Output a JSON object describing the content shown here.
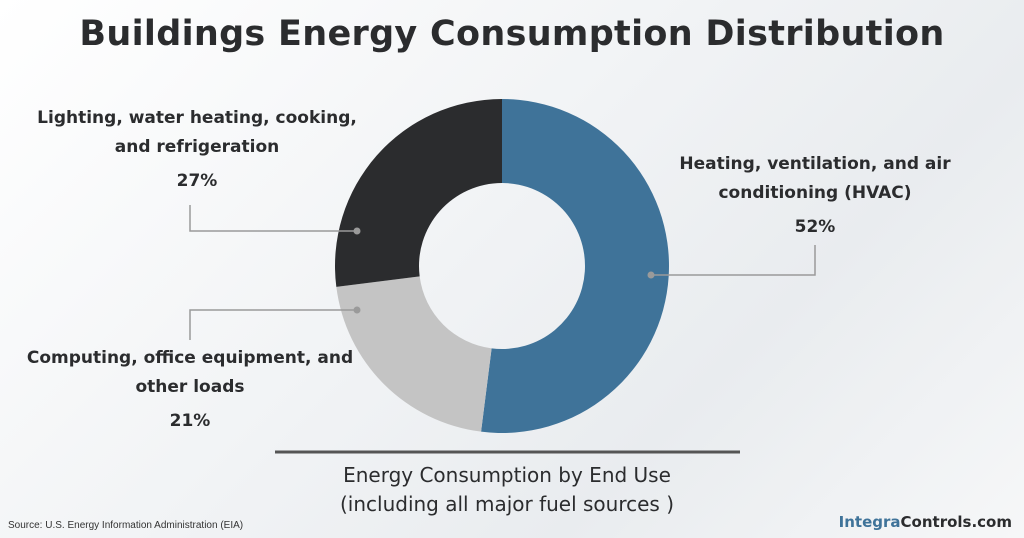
{
  "chart_data": {
    "type": "donut",
    "title": "Buildings Energy Consumption Distribution",
    "categories": [
      "Heating, ventilation, and air conditioning (HVAC)",
      "Computing, office equipment, and other loads",
      "Lighting, water heating, cooking, and refrigeration"
    ],
    "values": [
      52,
      21,
      27
    ],
    "value_labels": [
      "52%",
      "21%",
      "27%"
    ],
    "colors": [
      "#3f7399",
      "#c4c4c4",
      "#2b2c2e"
    ],
    "subtitle": [
      "Energy Consumption by End Use",
      "(including all major fuel sources )"
    ],
    "source": "Source: U.S. Energy Information Administration (EIA)",
    "brand": [
      "Integra",
      "Controls.com"
    ]
  }
}
